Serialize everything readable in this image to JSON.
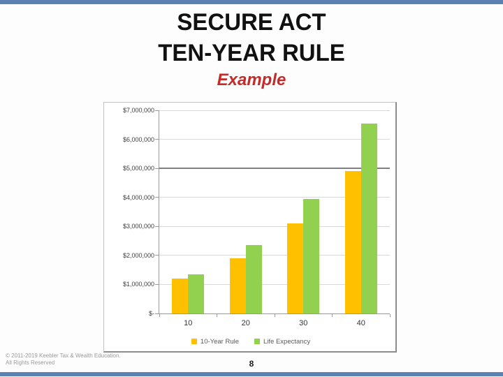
{
  "slide": {
    "title_line1": "SECURE ACT",
    "title_line2": "TEN-YEAR RULE",
    "subtitle": "Example",
    "footer_line1": "© 2011-2019 Keebler Tax & Wealth Education.",
    "footer_line2": "All Rights Reserved",
    "page_number": "8",
    "accent_color": "#5b81b2"
  },
  "chart_data": {
    "type": "bar",
    "title": "",
    "xlabel": "",
    "ylabel": "",
    "categories": [
      "10",
      "20",
      "30",
      "40"
    ],
    "series": [
      {
        "name": "10-Year Rule",
        "color": "#ffc000",
        "values": [
          1200000,
          1900000,
          3100000,
          4900000
        ]
      },
      {
        "name": "Life Expectancy",
        "color": "#92d050",
        "values": [
          1350000,
          2350000,
          3950000,
          6550000
        ]
      }
    ],
    "ylim": [
      0,
      7000000
    ],
    "yticks": [
      {
        "value": 0,
        "label": "$-"
      },
      {
        "value": 1000000,
        "label": "$1,000,000"
      },
      {
        "value": 2000000,
        "label": "$2,000,000"
      },
      {
        "value": 3000000,
        "label": "$3,000,000"
      },
      {
        "value": 4000000,
        "label": "$4,000,000"
      },
      {
        "value": 5000000,
        "label": "$5,000,000"
      },
      {
        "value": 6000000,
        "label": "$6,000,000"
      },
      {
        "value": 7000000,
        "label": "$7,000,000"
      }
    ],
    "emphasized_gridline": 5000000,
    "grid": true,
    "legend_position": "bottom"
  }
}
